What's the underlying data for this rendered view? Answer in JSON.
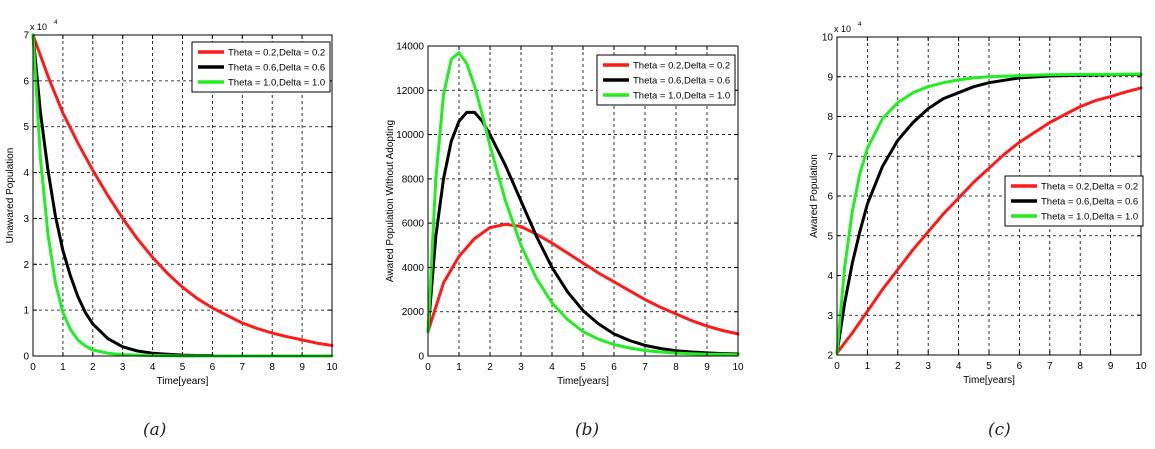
{
  "colors": {
    "red": "#ff1a1a",
    "black": "#000000",
    "green": "#22ee22"
  },
  "chart_data": [
    {
      "type": "line",
      "caption": "(a)",
      "ylabel": "Unawared Population",
      "xlabel": "Time[years]",
      "exponent_label": "x 10",
      "exponent_power": "4",
      "xlim": [
        0,
        10
      ],
      "ylim": [
        0,
        7
      ],
      "xticks": [
        "0",
        "1",
        "2",
        "3",
        "4",
        "5",
        "6",
        "7",
        "8",
        "9",
        "10"
      ],
      "yticks": [
        "0",
        "1",
        "2",
        "3",
        "4",
        "5",
        "6",
        "7"
      ],
      "grid": true,
      "legend_position": "top-right",
      "series": [
        {
          "name": "Theta = 0.2,Delta = 0.2",
          "color": "#ff1a1a",
          "x": [
            0,
            0.5,
            1,
            1.5,
            2,
            2.5,
            3,
            3.5,
            4,
            4.5,
            5,
            5.5,
            6,
            6.5,
            7,
            7.5,
            8,
            8.5,
            9,
            9.5,
            10
          ],
          "y": [
            7.0,
            6.1,
            5.3,
            4.65,
            4.05,
            3.5,
            3.0,
            2.55,
            2.15,
            1.8,
            1.5,
            1.25,
            1.05,
            0.88,
            0.72,
            0.6,
            0.5,
            0.42,
            0.35,
            0.28,
            0.23
          ]
        },
        {
          "name": "Theta = 0.6,Delta = 0.6",
          "color": "#000000",
          "x": [
            0,
            0.25,
            0.5,
            0.75,
            1,
            1.25,
            1.5,
            1.75,
            2,
            2.5,
            3,
            3.5,
            4,
            4.5,
            5,
            5.5,
            6
          ],
          "y": [
            7.0,
            5.3,
            4.05,
            3.05,
            2.3,
            1.75,
            1.3,
            0.95,
            0.7,
            0.38,
            0.2,
            0.11,
            0.06,
            0.04,
            0.02,
            0.01,
            0.01
          ]
        },
        {
          "name": "Theta = 1.0,Delta = 1.0",
          "color": "#22ee22",
          "x": [
            0,
            0.25,
            0.5,
            0.75,
            1,
            1.25,
            1.5,
            1.75,
            2,
            2.5,
            3,
            3.5,
            4,
            5,
            6,
            7,
            8,
            9,
            10
          ],
          "y": [
            7.0,
            4.3,
            2.65,
            1.6,
            0.95,
            0.58,
            0.35,
            0.22,
            0.13,
            0.06,
            0.03,
            0.02,
            0.01,
            0.0,
            0.0,
            0.0,
            0.0,
            0.0,
            0.0
          ]
        }
      ]
    },
    {
      "type": "line",
      "caption": "(b)",
      "ylabel": "Awared Population Without Adopting",
      "xlabel": "Time[years]",
      "exponent_label": "",
      "exponent_power": "",
      "xlim": [
        0,
        10
      ],
      "ylim": [
        0,
        14000
      ],
      "xticks": [
        "0",
        "1",
        "2",
        "3",
        "4",
        "5",
        "6",
        "7",
        "8",
        "9",
        "10"
      ],
      "yticks": [
        "0",
        "2000",
        "4000",
        "6000",
        "8000",
        "10000",
        "12000",
        "14000"
      ],
      "grid": true,
      "legend_position": "top-right",
      "series": [
        {
          "name": "Theta = 0.2,Delta = 0.2",
          "color": "#ff1a1a",
          "x": [
            0,
            0.5,
            1,
            1.5,
            2,
            2.5,
            3,
            3.5,
            4,
            4.5,
            5,
            5.5,
            6,
            6.5,
            7,
            7.5,
            8,
            8.5,
            9,
            9.5,
            10
          ],
          "y": [
            1100,
            3300,
            4500,
            5300,
            5800,
            5950,
            5850,
            5500,
            5100,
            4650,
            4200,
            3750,
            3350,
            2950,
            2550,
            2200,
            1900,
            1600,
            1350,
            1150,
            1000
          ]
        },
        {
          "name": "Theta = 0.6,Delta = 0.6",
          "color": "#000000",
          "x": [
            0,
            0.25,
            0.5,
            0.75,
            1,
            1.25,
            1.5,
            1.75,
            2,
            2.5,
            3,
            3.5,
            4,
            4.5,
            5,
            5.5,
            6,
            6.5,
            7,
            7.5,
            8,
            8.5,
            9,
            9.5,
            10
          ],
          "y": [
            1100,
            5400,
            8000,
            9700,
            10600,
            11000,
            11000,
            10600,
            10000,
            8600,
            7000,
            5400,
            4000,
            2900,
            2050,
            1450,
            1000,
            700,
            480,
            340,
            240,
            180,
            140,
            110,
            90
          ]
        },
        {
          "name": "Theta = 1.0,Delta = 1.0",
          "color": "#22ee22",
          "x": [
            0,
            0.25,
            0.5,
            0.75,
            1,
            1.25,
            1.5,
            1.75,
            2,
            2.5,
            3,
            3.5,
            4,
            4.5,
            5,
            5.5,
            6,
            6.5,
            7,
            7.5,
            8,
            8.5,
            9,
            9.5,
            10
          ],
          "y": [
            1100,
            8000,
            11800,
            13400,
            13700,
            13200,
            12200,
            10900,
            9500,
            7000,
            5000,
            3500,
            2400,
            1650,
            1100,
            760,
            520,
            360,
            250,
            180,
            130,
            100,
            80,
            70,
            60
          ]
        }
      ]
    },
    {
      "type": "line",
      "caption": "(c)",
      "ylabel": "Awared Population",
      "xlabel": "Time[years]",
      "exponent_label": "x 10",
      "exponent_power": "4",
      "xlim": [
        0,
        10
      ],
      "ylim": [
        2,
        10
      ],
      "xticks": [
        "0",
        "1",
        "2",
        "3",
        "4",
        "5",
        "6",
        "7",
        "8",
        "9",
        "10"
      ],
      "yticks": [
        "2",
        "3",
        "4",
        "5",
        "6",
        "7",
        "8",
        "9",
        "10"
      ],
      "grid": true,
      "legend_position": "center-right",
      "series": [
        {
          "name": "Theta = 0.2,Delta = 0.2",
          "color": "#ff1a1a",
          "x": [
            0,
            0.5,
            1,
            1.5,
            2,
            2.5,
            3,
            3.5,
            4,
            4.5,
            5,
            5.5,
            6,
            6.5,
            7,
            7.5,
            8,
            8.5,
            9,
            9.5,
            10
          ],
          "y": [
            2.05,
            2.55,
            3.1,
            3.65,
            4.15,
            4.65,
            5.1,
            5.55,
            5.95,
            6.35,
            6.7,
            7.05,
            7.35,
            7.6,
            7.85,
            8.05,
            8.25,
            8.4,
            8.5,
            8.62,
            8.72
          ]
        },
        {
          "name": "Theta = 0.6,Delta = 0.6",
          "color": "#000000",
          "x": [
            0,
            0.25,
            0.5,
            0.75,
            1,
            1.5,
            2,
            2.5,
            3,
            3.5,
            4,
            4.5,
            5,
            6,
            7,
            8,
            9,
            10
          ],
          "y": [
            2.05,
            3.3,
            4.3,
            5.1,
            5.8,
            6.75,
            7.4,
            7.85,
            8.2,
            8.45,
            8.6,
            8.75,
            8.85,
            8.97,
            9.02,
            9.04,
            9.05,
            9.06
          ]
        },
        {
          "name": "Theta = 1.0,Delta = 1.0",
          "color": "#22ee22",
          "x": [
            0,
            0.25,
            0.5,
            0.75,
            1,
            1.5,
            2,
            2.5,
            3,
            3.5,
            4,
            4.5,
            5,
            6,
            7,
            8,
            9,
            10
          ],
          "y": [
            2.05,
            4.2,
            5.6,
            6.55,
            7.2,
            7.95,
            8.35,
            8.6,
            8.75,
            8.85,
            8.92,
            8.97,
            9.0,
            9.03,
            9.05,
            9.06,
            9.06,
            9.07
          ]
        }
      ]
    }
  ]
}
